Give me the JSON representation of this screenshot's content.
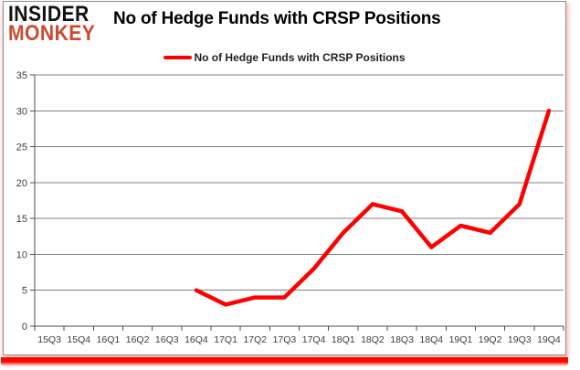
{
  "logo": {
    "line1": "INSIDER",
    "line2": "MONKEY"
  },
  "title": "No of Hedge Funds with CRSP Positions",
  "legend": {
    "label": "No of Hedge Funds with CRSP Positions"
  },
  "colors": {
    "line": "#fe0000",
    "grid": "#808080",
    "axis": "#4d4d4d",
    "tick_text": "#3d3d3d",
    "logo_black": "#151110",
    "logo_red": "#cc4a2f",
    "shadow_red": "#fb0800",
    "border_gray": "#8c8c8c"
  },
  "chart_data": {
    "type": "line",
    "title": "No of Hedge Funds with CRSP Positions",
    "xlabel": "",
    "ylabel": "",
    "categories": [
      "15Q3",
      "15Q4",
      "16Q1",
      "16Q2",
      "16Q3",
      "16Q4",
      "17Q1",
      "17Q2",
      "17Q3",
      "17Q4",
      "18Q1",
      "18Q2",
      "18Q3",
      "18Q4",
      "19Q1",
      "19Q2",
      "19Q3",
      "19Q4"
    ],
    "series": [
      {
        "name": "No of Hedge Funds with CRSP Positions",
        "values": [
          null,
          null,
          null,
          null,
          null,
          5,
          3,
          4,
          4,
          8,
          13,
          17,
          16,
          11,
          14,
          13,
          17,
          30
        ]
      }
    ],
    "ylim": [
      0,
      35
    ],
    "ytick_step": 5,
    "yticks": [
      0,
      5,
      10,
      15,
      20,
      25,
      30,
      35
    ],
    "grid": "horizontal",
    "legend_position": "top-center"
  }
}
